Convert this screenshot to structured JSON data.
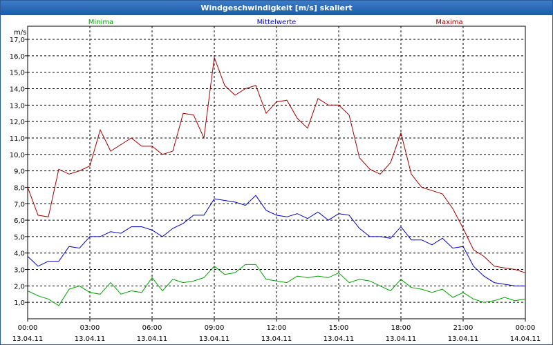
{
  "chart_data": {
    "type": "line",
    "title": "Windgeschwindigkeit [m/s] skaliert",
    "ylabel": "m/s",
    "ylim": [
      0,
      17.8
    ],
    "xlim": [
      0,
      24
    ],
    "grid": true,
    "y_ticks": [
      "1,0",
      "2,0",
      "3,0",
      "4,0",
      "5,0",
      "6,0",
      "7,0",
      "8,0",
      "9,0",
      "10,0",
      "11,0",
      "12,0",
      "13,0",
      "14,0",
      "15,0",
      "16,0",
      "17,0"
    ],
    "x_ticks": [
      {
        "time": "00:00",
        "date": "13.04.11"
      },
      {
        "time": "03:00",
        "date": "13.04.11"
      },
      {
        "time": "06:00",
        "date": "13.04.11"
      },
      {
        "time": "09:00",
        "date": "13.04.11"
      },
      {
        "time": "12:00",
        "date": "13.04.11"
      },
      {
        "time": "15:00",
        "date": "13.04.11"
      },
      {
        "time": "18:00",
        "date": "13.04.11"
      },
      {
        "time": "21:00",
        "date": "13.04.11"
      },
      {
        "time": "00:00",
        "date": "14.04.11"
      }
    ],
    "x_hours": [
      0,
      0.5,
      1,
      1.5,
      2,
      2.5,
      3,
      3.5,
      4,
      4.5,
      5,
      5.5,
      6,
      6.5,
      7,
      7.5,
      8,
      8.5,
      9,
      9.5,
      10,
      10.5,
      11,
      11.5,
      12,
      12.5,
      13,
      13.5,
      14,
      14.5,
      15,
      15.5,
      16,
      16.5,
      17,
      17.5,
      18,
      18.5,
      19,
      19.5,
      20,
      20.5,
      21,
      21.5,
      22,
      22.5,
      23,
      23.5,
      24
    ],
    "series": [
      {
        "name": "Minima",
        "color": "#00a000",
        "values": [
          1.7,
          1.4,
          1.2,
          0.8,
          1.8,
          2.0,
          1.6,
          1.5,
          2.2,
          1.5,
          1.7,
          1.6,
          2.5,
          1.7,
          2.4,
          2.2,
          2.3,
          2.5,
          3.2,
          2.7,
          2.8,
          3.3,
          3.3,
          2.4,
          2.3,
          2.2,
          2.6,
          2.5,
          2.6,
          2.5,
          2.8,
          2.2,
          2.4,
          2.3,
          2.0,
          1.7,
          2.4,
          1.9,
          1.8,
          1.6,
          1.8,
          1.3,
          1.6,
          1.2,
          1.0,
          1.1,
          1.3,
          1.1,
          1.2
        ]
      },
      {
        "name": "Mittelwerte",
        "color": "#0000c0",
        "values": [
          3.8,
          3.2,
          3.5,
          3.5,
          4.4,
          4.3,
          5.0,
          5.0,
          5.3,
          5.2,
          5.6,
          5.6,
          5.4,
          5.0,
          5.5,
          5.8,
          6.3,
          6.3,
          7.3,
          7.2,
          7.1,
          6.9,
          7.5,
          6.6,
          6.3,
          6.2,
          6.4,
          6.1,
          6.5,
          6.0,
          6.4,
          6.3,
          5.5,
          5.0,
          5.0,
          4.9,
          5.6,
          4.8,
          4.8,
          4.5,
          4.9,
          4.3,
          4.4,
          3.2,
          2.6,
          2.2,
          2.1,
          2.0,
          2.0
        ]
      },
      {
        "name": "Maxima",
        "color": "#a00000",
        "values": [
          8.0,
          6.3,
          6.2,
          9.1,
          8.8,
          9.0,
          9.3,
          11.5,
          10.2,
          10.6,
          11.0,
          10.5,
          10.5,
          10.0,
          10.2,
          12.5,
          12.4,
          11.0,
          15.9,
          14.2,
          13.6,
          14.0,
          14.2,
          12.5,
          13.2,
          13.3,
          12.2,
          11.6,
          13.4,
          13.0,
          13.0,
          12.4,
          9.8,
          9.1,
          8.8,
          9.5,
          11.3,
          8.8,
          8.0,
          7.8,
          7.6,
          6.7,
          5.5,
          4.2,
          3.8,
          3.2,
          3.1,
          3.0,
          2.8
        ]
      }
    ]
  }
}
